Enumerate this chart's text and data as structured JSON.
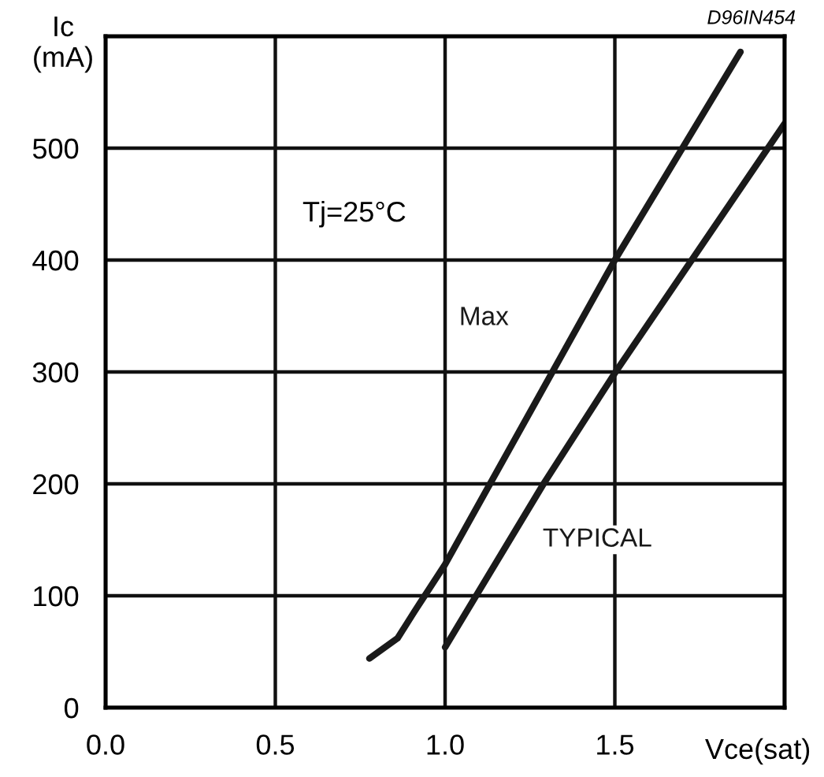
{
  "chart_data": {
    "type": "line",
    "title": "D96IN454",
    "xlabel": "Vce(sat)",
    "ylabel": "Ic\n(mA)",
    "annotations": [
      "Tj=25°C"
    ],
    "series": [
      {
        "name": "Max",
        "color": "#1a1a1a",
        "x": [
          0.777,
          0.86,
          0.91,
          1.0,
          1.5,
          1.87
        ],
        "values": [
          44,
          62,
          86,
          128,
          400,
          586
        ]
      },
      {
        "name": "TYPICAL",
        "color": "#1a1a1a",
        "x": [
          1.0,
          1.29,
          1.5,
          2.0
        ],
        "values": [
          54,
          200,
          299,
          522
        ]
      }
    ],
    "xlim": [
      0,
      2.0
    ],
    "ylim": [
      0,
      600
    ],
    "xticks": [
      {
        "value": 0,
        "label": "0.0"
      },
      0.5,
      {
        "value": 1,
        "label": "1.0"
      },
      1.5,
      {
        "value": 2,
        "label": null
      }
    ],
    "yticks": [
      0,
      100,
      200,
      300,
      400,
      500,
      {
        "value": 600,
        "label": null
      }
    ],
    "grid": true,
    "marker": "none",
    "line_style": "solid",
    "legend": false
  }
}
